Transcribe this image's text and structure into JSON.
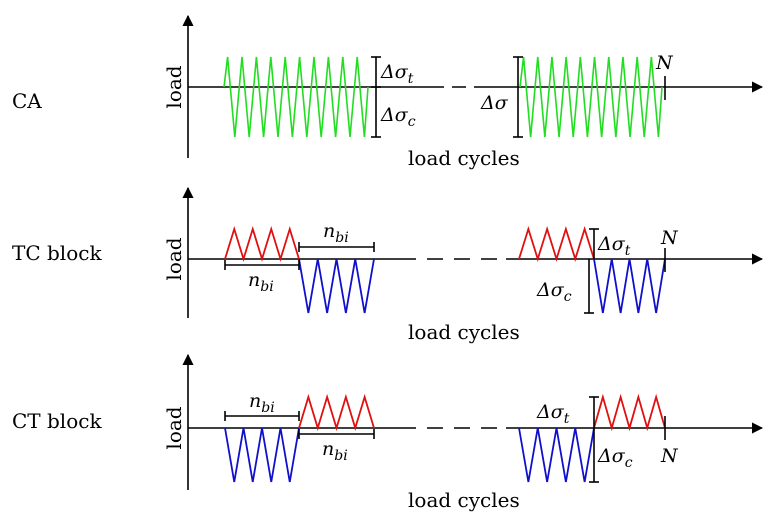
{
  "colors": {
    "ca_wave": "#22dd22",
    "tension": "#e01010",
    "compression": "#1010cc",
    "axis": "#000000"
  },
  "rows": [
    {
      "row_label": "CA",
      "y_axis_label": "load",
      "x_axis_label": "load cycles",
      "delta_t_label": "Δσ",
      "delta_t_sub": "t",
      "delta_c_label": "Δσ",
      "delta_c_sub": "c",
      "delta_label": "Δσ",
      "end_label": "N"
    },
    {
      "row_label": "TC block",
      "y_axis_label": "load",
      "x_axis_label": "load cycles",
      "nb_top_label": "n",
      "nb_top_sub": "bi",
      "nb_bottom_label": "n",
      "nb_bottom_sub": "bi",
      "delta_t_label": "Δσ",
      "delta_t_sub": "t",
      "delta_c_label": "Δσ",
      "delta_c_sub": "c",
      "end_label": "N"
    },
    {
      "row_label": "CT block",
      "y_axis_label": "load",
      "x_axis_label": "load cycles",
      "nb_top_label": "n",
      "nb_top_sub": "bi",
      "nb_bottom_label": "n",
      "nb_bottom_sub": "bi",
      "delta_t_label": "Δσ",
      "delta_t_sub": "t",
      "delta_c_label": "Δσ",
      "delta_c_sub": "c",
      "end_label": "N"
    }
  ]
}
